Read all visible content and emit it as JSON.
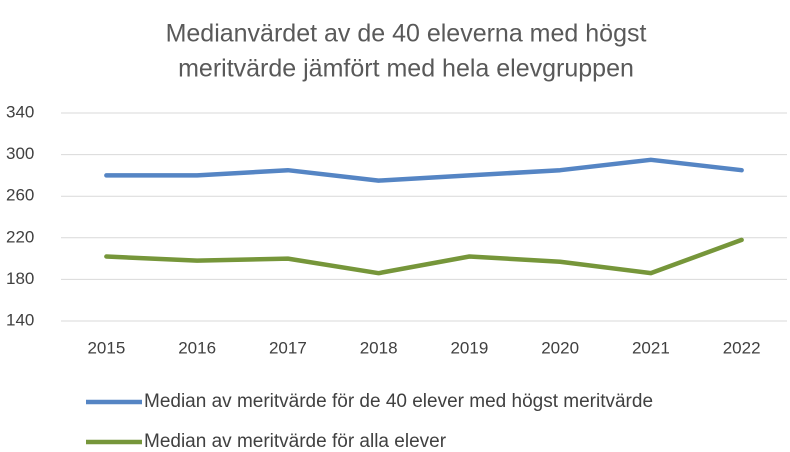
{
  "chart_data": {
    "type": "line",
    "title": [
      "Medianvärdet av de 40  eleverna med högst",
      "meritvärde jämfört med hela elevgruppen"
    ],
    "categories": [
      "2015",
      "2016",
      "2017",
      "2018",
      "2019",
      "2020",
      "2021",
      "2022"
    ],
    "series": [
      {
        "name": "Median av meritvärde för de 40 elever med högst meritvärde",
        "color": "#5585c4",
        "values": [
          280,
          280,
          285,
          275,
          280,
          285,
          295,
          285
        ]
      },
      {
        "name": "Median av meritvärde för alla elever",
        "color": "#76963a",
        "values": [
          202,
          198,
          200,
          186,
          202,
          197,
          186,
          218
        ]
      }
    ],
    "ylim": [
      140,
      340
    ],
    "yticks": [
      140,
      180,
      220,
      260,
      300,
      340
    ],
    "grid": true,
    "legend": "bottom"
  }
}
